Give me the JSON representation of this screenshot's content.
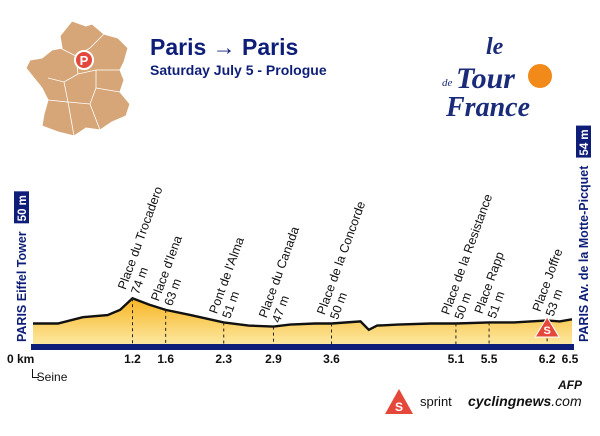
{
  "header": {
    "title_start": "Paris",
    "title_arrow": "→",
    "title_end": "Paris",
    "subtitle": "Saturday July 5 - Prologue"
  },
  "logo": {
    "line1": "le",
    "line2a": "de",
    "line2b": "Tour",
    "line3": "France",
    "sun_color": "#f28a1a",
    "ink_color": "#1a2b7a"
  },
  "map": {
    "marker_letter": "P",
    "country_color": "#d6a678",
    "marker_color": "#e4483a"
  },
  "legend": {
    "sprint_label": "sprint",
    "sprint_letter": "S"
  },
  "footer": {
    "site_main": "cyclingnews",
    "site_tld": ".com",
    "agency": "AFP",
    "river_label": "Seine"
  },
  "chart_data": {
    "type": "area",
    "title": "Paris → Paris",
    "subtitle": "Saturday July 5 - Prologue",
    "xlabel": "",
    "ylabel": "",
    "x_unit": "km",
    "xlim": [
      0,
      6.5
    ],
    "tick_labels": [
      "0 km",
      "1.2",
      "1.6",
      "2.3",
      "2.9",
      "3.6",
      "5.1",
      "5.5",
      "6.2",
      "6.5"
    ],
    "start": {
      "name": "PARIS Eiffel Tower",
      "elevation_label": "50 m",
      "km": 0
    },
    "finish": {
      "name": "PARIS Av. de la Motte-Picquet",
      "elevation_label": "54 m",
      "km": 6.5
    },
    "waypoints": [
      {
        "km": 1.2,
        "name": "Place du Trocadero",
        "elevation": "74 m"
      },
      {
        "km": 1.6,
        "name": "Place d'Iena",
        "elevation": "63 m"
      },
      {
        "km": 2.3,
        "name": "Pont de l'Alma",
        "elevation": "51 m"
      },
      {
        "km": 2.9,
        "name": "Place du Canada",
        "elevation": "47 m"
      },
      {
        "km": 3.6,
        "name": "Place de la Concorde",
        "elevation": "50 m"
      },
      {
        "km": 5.1,
        "name": "Place de la Resistance",
        "elevation": "50 m"
      },
      {
        "km": 5.5,
        "name": "Place Rapp",
        "elevation": "51 m"
      },
      {
        "km": 6.2,
        "name": "Place Joffre",
        "elevation": "53 m"
      }
    ],
    "profile": {
      "km": [
        0,
        0.3,
        0.6,
        0.9,
        1.05,
        1.2,
        1.4,
        1.6,
        1.9,
        2.3,
        2.6,
        2.9,
        3.1,
        3.4,
        3.6,
        3.95,
        4.05,
        4.15,
        4.4,
        4.8,
        5.1,
        5.5,
        5.8,
        6.0,
        6.2,
        6.35,
        6.5
      ],
      "elevation": [
        50,
        50,
        56,
        58,
        63,
        74,
        68,
        63,
        58,
        51,
        48,
        47,
        49,
        50,
        50,
        52,
        44,
        48,
        49,
        50,
        50,
        51,
        51,
        52,
        53,
        52,
        54
      ]
    },
    "sprint_km": 6.2,
    "colors": {
      "fill_top": "#f7b422",
      "fill_bottom": "#fde8a0",
      "base": "#0e1e78",
      "ridge": "#111111"
    }
  }
}
